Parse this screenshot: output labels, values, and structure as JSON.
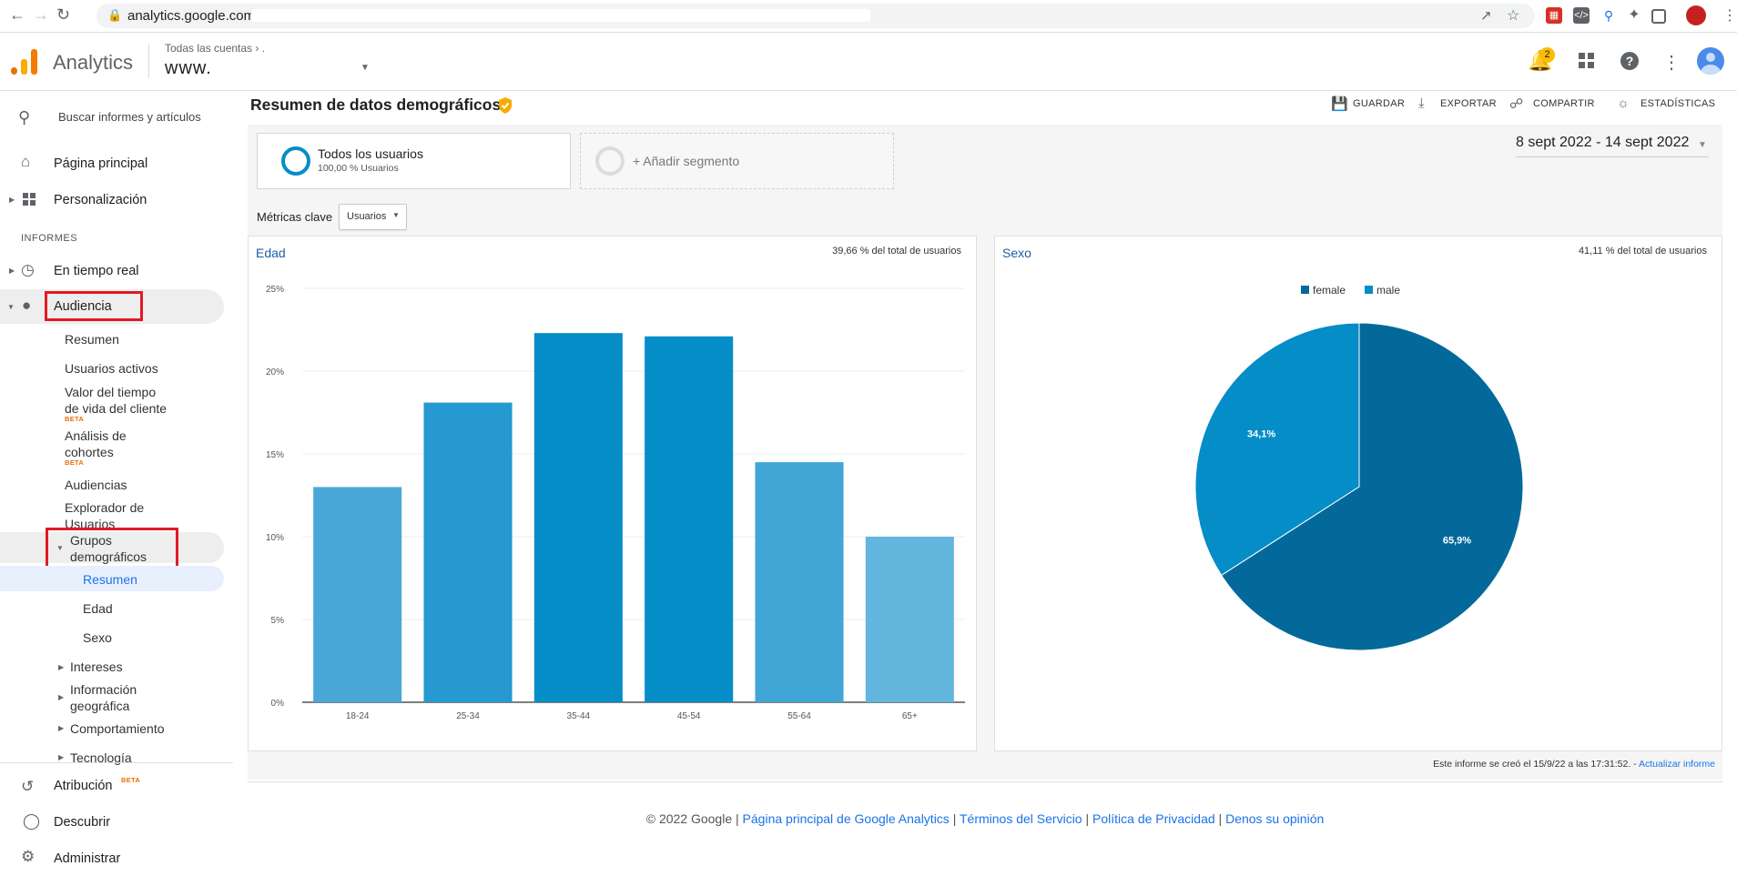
{
  "browser": {
    "url": "analytics.google.com/"
  },
  "header": {
    "brand": "Analytics",
    "account_crumb": "Todas las cuentas",
    "account_crumb_sep": "›",
    "account_crumb_tail": ".",
    "property": "www.",
    "notifications_count": "2"
  },
  "sidebar": {
    "search_placeholder": "Buscar informes y artículos",
    "home": "Página principal",
    "customization": "Personalización",
    "section_reports": "INFORMES",
    "realtime": "En tiempo real",
    "audience": "Audiencia",
    "audience_items": {
      "overview": "Resumen",
      "active_users": "Usuarios activos",
      "ltv_line1": "Valor del tiempo",
      "ltv_line2": "de vida del cliente",
      "beta": "BETA",
      "cohort_line1": "Análisis de",
      "cohort_line2": "cohortes",
      "audiences": "Audiencias",
      "explorer_line1": "Explorador de",
      "explorer_line2": "Usuarios",
      "demographics_line1": "Grupos",
      "demographics_line2": "demográficos"
    },
    "demographics_items": {
      "overview": "Resumen",
      "age": "Edad",
      "gender": "Sexo"
    },
    "interests": "Intereses",
    "geo_line1": "Información",
    "geo_line2": "geográfica",
    "behavior": "Comportamiento",
    "technology": "Tecnología",
    "attribution": "Atribución",
    "attribution_badge": "BETA",
    "discover": "Descubrir",
    "admin": "Administrar"
  },
  "toolbar": {
    "title": "Resumen de datos demográficos",
    "save": "GUARDAR",
    "export": "EXPORTAR",
    "share": "COMPARTIR",
    "insights": "ESTADÍSTICAS"
  },
  "segments": {
    "all_users": "Todos los usuarios",
    "all_users_pct": "100,00 % Usuarios",
    "add_segment": "+ Añadir segmento"
  },
  "date_range": "8 sept 2022 - 14 sept 2022",
  "metrics": {
    "label": "Métricas clave",
    "selected": "Usuarios"
  },
  "panels": {
    "age": {
      "title": "Edad",
      "note": "39,66 % del total de usuarios"
    },
    "sex": {
      "title": "Sexo",
      "note": "41,11 % del total de usuarios"
    }
  },
  "report_created": "Este informe se creó el 15/9/22 a las 17:31:52. -",
  "report_refresh": "Actualizar informe",
  "footer": {
    "copyright": "© 2022 Google",
    "sep": " | ",
    "home_link": "Página principal de Google Analytics",
    "terms": "Términos del Servicio",
    "privacy": "Política de Privacidad",
    "feedback": "Denos su opinión"
  },
  "chart_data": [
    {
      "type": "bar",
      "categories": [
        "18-24",
        "25-34",
        "35-44",
        "45-54",
        "55-64",
        "65+"
      ],
      "values": [
        13.0,
        18.1,
        22.3,
        22.1,
        14.5,
        10.0
      ],
      "colors": [
        "#4aa8d8",
        "#2599d0",
        "#058dc7",
        "#058dc7",
        "#41a6d6",
        "#62b6dd"
      ],
      "ylim": [
        0,
        25
      ],
      "yticks": [
        "0%",
        "5%",
        "10%",
        "15%",
        "20%",
        "25%"
      ],
      "grid": true
    },
    {
      "type": "pie",
      "labels": [
        "female",
        "male"
      ],
      "values": [
        65.9,
        34.1
      ],
      "value_labels": [
        "65,9%",
        "34,1%"
      ],
      "colors": [
        "#03699a",
        "#058dc7"
      ],
      "legend": "top"
    }
  ]
}
